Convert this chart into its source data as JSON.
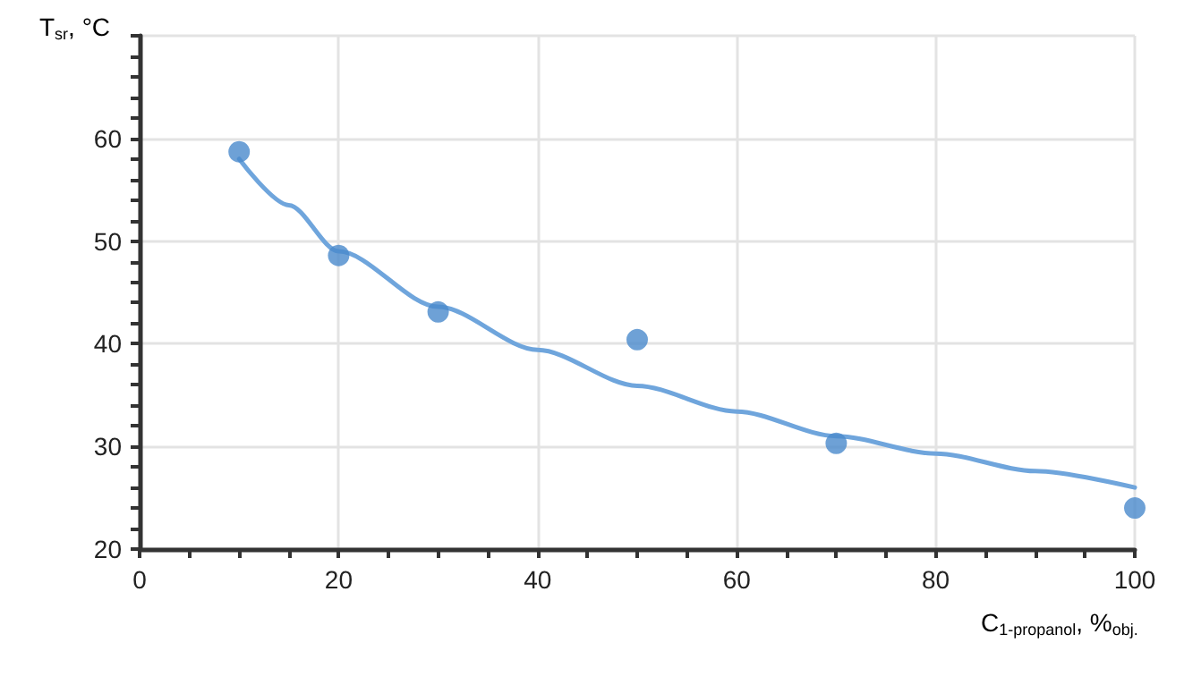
{
  "chart_data": {
    "type": "scatter",
    "xlabel": "C$_{1-propanol}$, %$_{obj.}$",
    "ylabel": "T$_{sr}$, °C",
    "xlim": [
      0,
      100
    ],
    "ylim": [
      20,
      70
    ],
    "xticks": [
      0,
      {
        "value": 5,
        "label": null
      },
      {
        "value": 10,
        "label": null
      },
      {
        "value": 15,
        "label": null
      },
      20,
      {
        "value": 25,
        "label": null
      },
      {
        "value": 30,
        "label": null
      },
      {
        "value": 35,
        "label": null
      },
      40,
      {
        "value": 45,
        "label": null
      },
      {
        "value": 50,
        "label": null
      },
      {
        "value": 55,
        "label": null
      },
      60,
      {
        "value": 65,
        "label": null
      },
      {
        "value": 70,
        "label": null
      },
      {
        "value": 75,
        "label": null
      },
      80,
      {
        "value": 85,
        "label": null
      },
      {
        "value": 90,
        "label": null
      },
      {
        "value": 95,
        "label": null
      },
      100
    ],
    "yticks": [
      20,
      {
        "value": 22,
        "label": null
      },
      {
        "value": 24,
        "label": null
      },
      {
        "value": 26,
        "label": null
      },
      {
        "value": 28,
        "label": null
      },
      30,
      {
        "value": 32,
        "label": null
      },
      {
        "value": 34,
        "label": null
      },
      {
        "value": 36,
        "label": null
      },
      {
        "value": 38,
        "label": null
      },
      40,
      {
        "value": 42,
        "label": null
      },
      {
        "value": 44,
        "label": null
      },
      {
        "value": 46,
        "label": null
      },
      {
        "value": 48,
        "label": null
      },
      50,
      {
        "value": 52,
        "label": null
      },
      {
        "value": 54,
        "label": null
      },
      {
        "value": 56,
        "label": null
      },
      {
        "value": 58,
        "label": null
      },
      60,
      {
        "value": 62,
        "label": null
      },
      {
        "value": 64,
        "label": null
      },
      {
        "value": 66,
        "label": null
      },
      {
        "value": 68,
        "label": null
      },
      {
        "value": 70,
        "label": null
      }
    ],
    "grid": true,
    "marker": "circle",
    "series": [
      {
        "color": "#4a89cc",
        "x": [
          10,
          20,
          30,
          50,
          70,
          100
        ],
        "values": [
          58.7,
          48.6,
          43.1,
          40.4,
          30.3,
          24.0
        ]
      },
      {
        "type": "line",
        "color": "#6fa5dc",
        "line_style": "solid",
        "marker": "none",
        "x": [
          10,
          15,
          20,
          30,
          40,
          50,
          60,
          70,
          80,
          90,
          100
        ],
        "values": [
          58.0,
          53.5,
          49.0,
          43.6,
          39.4,
          35.9,
          33.4,
          31.0,
          29.3,
          27.6,
          26.0
        ]
      }
    ]
  }
}
